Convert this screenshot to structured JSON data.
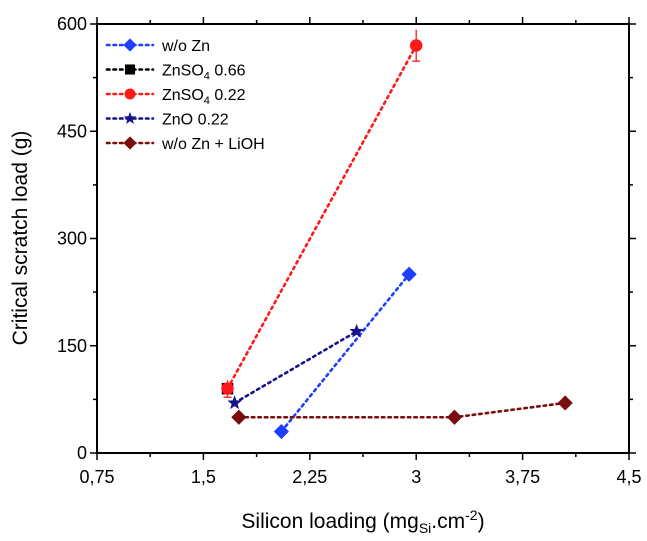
{
  "chart_data": {
    "type": "scatter",
    "title": "",
    "ylabel": "Critical scratch load (g)",
    "xlabel": {
      "base": "Silicon loading (mg",
      "sub": "Si",
      "mid": ".cm",
      "sup": "-2",
      "end": ")"
    },
    "xlim": [
      0.75,
      4.5
    ],
    "ylim": [
      0,
      600
    ],
    "x_ticks": [
      0.75,
      1.5,
      2.25,
      3,
      3.75,
      4.5
    ],
    "x_tick_labels": [
      "0,75",
      "1,5",
      "2,25",
      "3",
      "3,75",
      "4,5"
    ],
    "y_ticks": [
      0,
      150,
      300,
      450,
      600
    ],
    "y_tick_labels": [
      "0",
      "150",
      "300",
      "450",
      "600"
    ],
    "legend_position": "top-left",
    "series": [
      {
        "name": "w/o Zn",
        "name_parts": {
          "base": "w/o Zn",
          "sub": "",
          "rest": ""
        },
        "color": "#1f3fff",
        "marker": "diamond",
        "points": [
          [
            2.05,
            30
          ],
          [
            2.95,
            250
          ]
        ]
      },
      {
        "name": "ZnSO4 0.66",
        "name_parts": {
          "base": "ZnSO",
          "sub": "4",
          "rest": " 0.66"
        },
        "color": "#000000",
        "marker": "square",
        "points": [
          [
            1.67,
            90
          ]
        ]
      },
      {
        "name": "ZnSO4 0.22",
        "name_parts": {
          "base": "ZnSO",
          "sub": "4",
          "rest": " 0.22"
        },
        "color": "#ff1a1a",
        "marker": "circle",
        "points": [
          [
            1.67,
            90
          ],
          [
            3.0,
            570
          ]
        ],
        "error_y": [
          12,
          22
        ]
      },
      {
        "name": "ZnO 0.22",
        "name_parts": {
          "base": "ZnO 0.22",
          "sub": "",
          "rest": ""
        },
        "color": "#14148c",
        "marker": "star",
        "points": [
          [
            1.72,
            70
          ],
          [
            2.58,
            170
          ]
        ]
      },
      {
        "name": "w/o Zn + LiOH",
        "name_parts": {
          "base": "w/o Zn + LiOH",
          "sub": "",
          "rest": ""
        },
        "color": "#7a0d0d",
        "marker": "diamond",
        "points": [
          [
            1.75,
            50
          ],
          [
            3.27,
            50
          ],
          [
            4.05,
            70
          ]
        ]
      }
    ]
  }
}
